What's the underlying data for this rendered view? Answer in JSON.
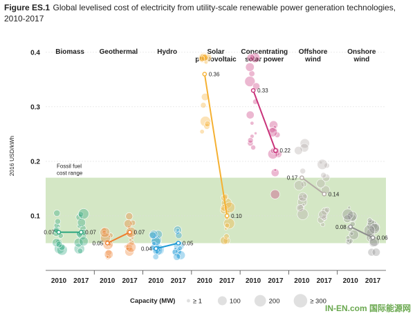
{
  "figure": {
    "label": "Figure ES.1",
    "title_line1": "Global levelised cost of electricity from utility-scale renewable power generation technologies,",
    "title_line2": "2010-2017"
  },
  "colors": {
    "Biomass": "#2aa57e",
    "Geothermal": "#ef7d2c",
    "Hydro": "#1f9ad6",
    "Solar photovoltaic": "#f5b031",
    "Concentrating solar power": "#c9337a",
    "Offshore wind": "#b3aaa5",
    "Onshore wind": "#8d8d8d",
    "fossil_band": "#cde3bb"
  },
  "chart_data": {
    "type": "scatter",
    "ylabel": "2016 USD/kWh",
    "ylim": [
      0,
      0.42
    ],
    "yticks": [
      "0.1",
      "0.2",
      "0.3",
      "0.4"
    ],
    "fossil_fuel_range": {
      "label_line1": "Fossil fuel",
      "label_line2": "cost range",
      "low": 0.05,
      "high": 0.17
    },
    "x_tick_labels": [
      "2010",
      "2017"
    ],
    "categories": [
      {
        "name_line1": "Biomass",
        "name_line2": "",
        "avg_2010": 0.07,
        "avg_2017": 0.07,
        "label_2010": "0.07",
        "label_2017": "0.07",
        "label_2010_side": "left"
      },
      {
        "name_line1": "Geothermal",
        "name_line2": "",
        "avg_2010": 0.05,
        "avg_2017": 0.07,
        "label_2010": "0.05",
        "label_2017": "0.07",
        "label_2010_side": "left"
      },
      {
        "name_line1": "Hydro",
        "name_line2": "",
        "avg_2010": 0.04,
        "avg_2017": 0.05,
        "label_2010": "0.04",
        "label_2017": "0.05",
        "label_2010_side": "left"
      },
      {
        "name_line1": "Solar",
        "name_line2": "photovoltaic",
        "avg_2010": 0.36,
        "avg_2017": 0.1,
        "label_2010": "0.36",
        "label_2017": "0.10",
        "label_2010_side": "right"
      },
      {
        "name_line1": "Concentrating",
        "name_line2": "solar power",
        "avg_2010": 0.33,
        "avg_2017": 0.22,
        "label_2010": "0.33",
        "label_2017": "0.22",
        "label_2010_side": "right"
      },
      {
        "name_line1": "Offshore",
        "name_line2": "wind",
        "avg_2010": 0.17,
        "avg_2017": 0.14,
        "label_2010": "0.17",
        "label_2017": "0.14",
        "label_2010_side": "left"
      },
      {
        "name_line1": "Onshore",
        "name_line2": "wind",
        "avg_2010": 0.08,
        "avg_2017": 0.06,
        "label_2010": "0.08",
        "label_2017": "0.06",
        "label_2010_side": "left"
      }
    ],
    "legend": {
      "title": "Capacity (MW)",
      "items": [
        {
          "label": "≥ 1",
          "mw": 1
        },
        {
          "label": "100",
          "mw": 100
        },
        {
          "label": "200",
          "mw": 200
        },
        {
          "label": "≥ 300",
          "mw": 300
        }
      ]
    }
  },
  "watermark": "IN-EN.com 国际能源网"
}
